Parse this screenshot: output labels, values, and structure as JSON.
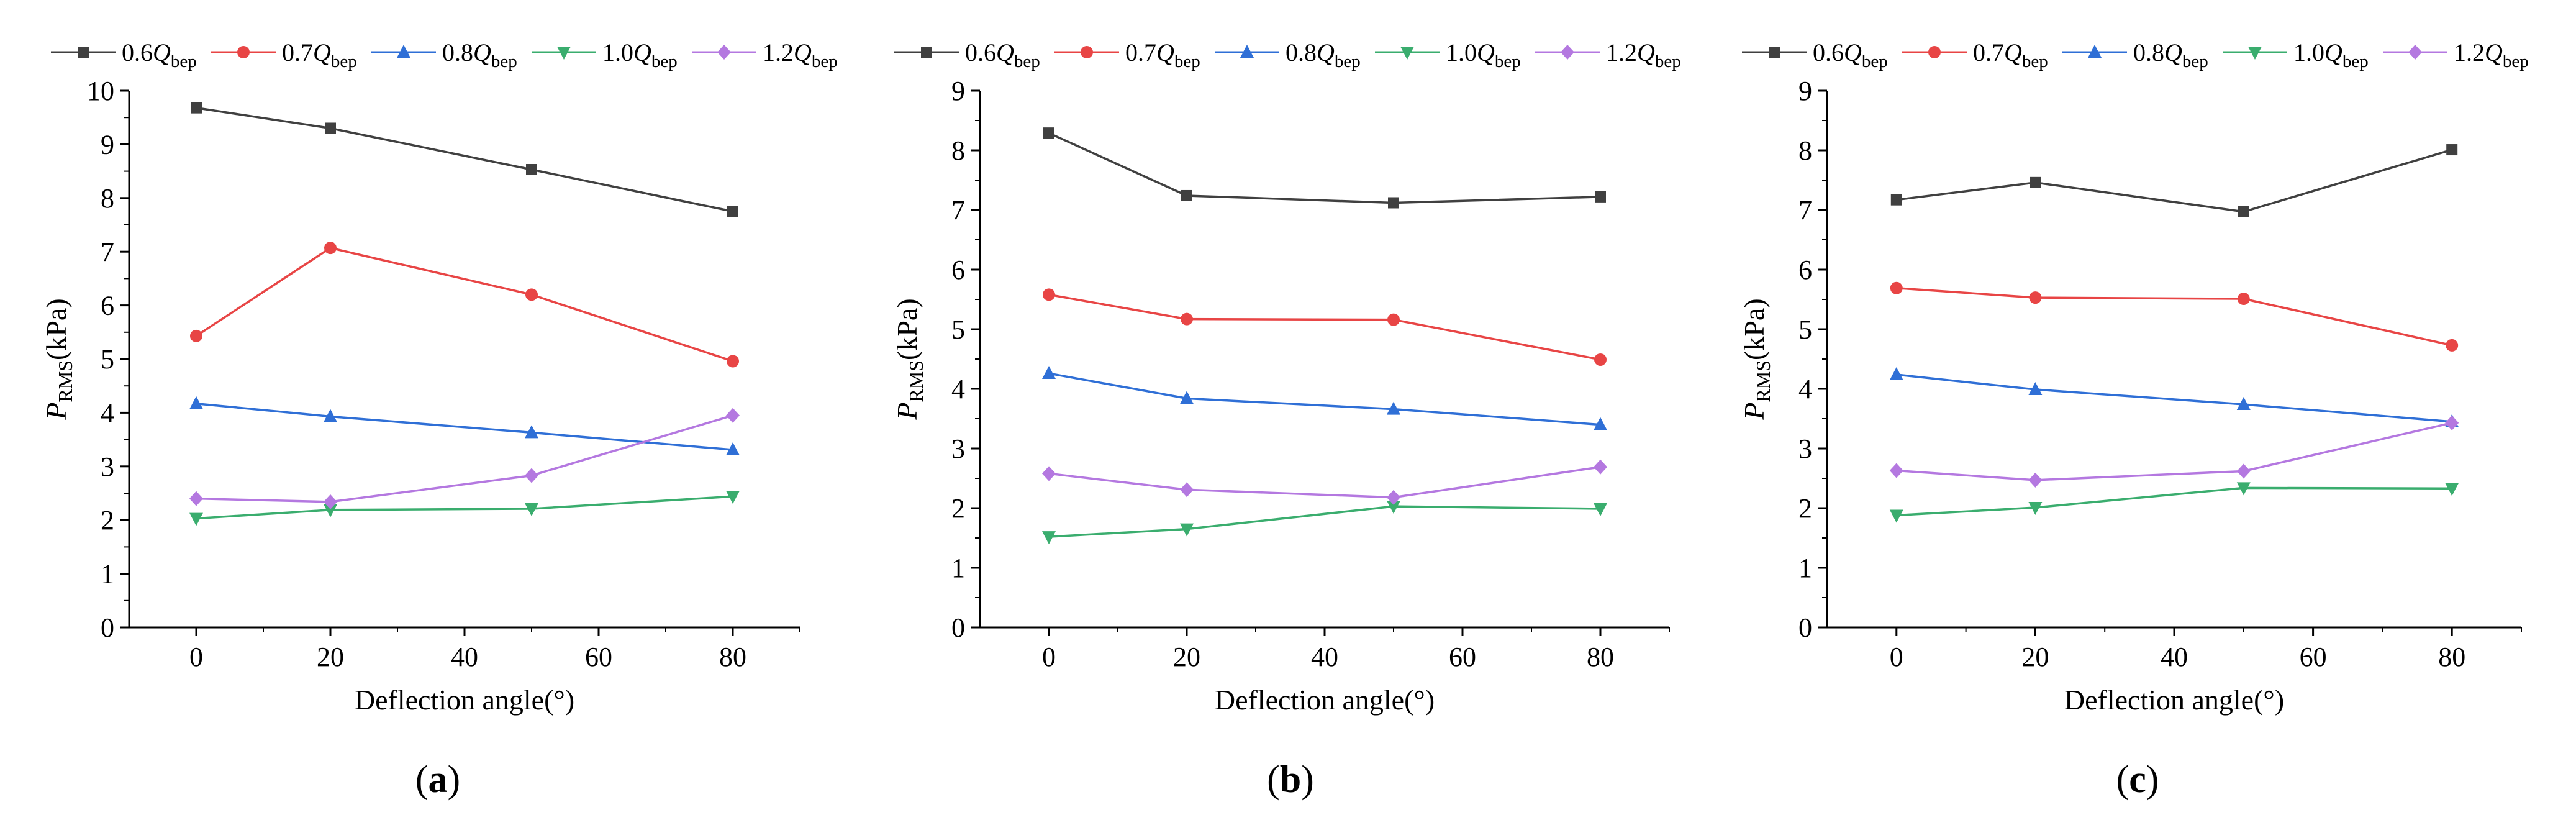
{
  "series_meta": [
    {
      "label": {
        "coef": "0.6",
        "q": "Q",
        "sub": "bep"
      },
      "color": "#404040",
      "marker": "square"
    },
    {
      "label": {
        "coef": "0.7",
        "q": "Q",
        "sub": "bep"
      },
      "color": "#e84545",
      "marker": "circle"
    },
    {
      "label": {
        "coef": "0.8",
        "q": "Q",
        "sub": "bep"
      },
      "color": "#2f6fd6",
      "marker": "triangle-up"
    },
    {
      "label": {
        "coef": "1.0",
        "q": "Q",
        "sub": "bep"
      },
      "color": "#3aad6e",
      "marker": "triangle-down"
    },
    {
      "label": {
        "coef": "1.2",
        "q": "Q",
        "sub": "bep"
      },
      "color": "#b478e0",
      "marker": "diamond"
    }
  ],
  "chart_data": [
    {
      "type": "line",
      "panel_label": "a",
      "title": "",
      "xlabel": "Deflection angle(°)",
      "ylabel": {
        "main": "P",
        "sub": "RMS",
        "unit": "(kPa)"
      },
      "x": [
        0,
        20,
        50,
        80
      ],
      "xlim": [
        -10,
        90
      ],
      "xticks": [
        0,
        20,
        40,
        60,
        80
      ],
      "ylim": [
        0,
        10
      ],
      "yticks": [
        0,
        1,
        2,
        3,
        4,
        5,
        6,
        7,
        8,
        9,
        10
      ],
      "grid": false,
      "legend": "top",
      "series": [
        {
          "name": "0.6Qbep",
          "values": [
            9.68,
            9.3,
            8.53,
            7.75
          ]
        },
        {
          "name": "0.7Qbep",
          "values": [
            5.43,
            7.07,
            6.2,
            4.96
          ]
        },
        {
          "name": "0.8Qbep",
          "values": [
            4.17,
            3.93,
            3.63,
            3.31
          ]
        },
        {
          "name": "1.0Qbep",
          "values": [
            2.03,
            2.19,
            2.21,
            2.44
          ]
        },
        {
          "name": "1.2Qbep",
          "values": [
            2.4,
            2.34,
            2.83,
            3.95
          ]
        }
      ]
    },
    {
      "type": "line",
      "panel_label": "b",
      "title": "",
      "xlabel": "Deflection angle(°)",
      "ylabel": {
        "main": "P",
        "sub": "RMS",
        "unit": "(kPa)"
      },
      "x": [
        0,
        20,
        50,
        80
      ],
      "xlim": [
        -10,
        90
      ],
      "xticks": [
        0,
        20,
        40,
        60,
        80
      ],
      "ylim": [
        0,
        9
      ],
      "yticks": [
        0,
        1,
        2,
        3,
        4,
        5,
        6,
        7,
        8,
        9
      ],
      "grid": false,
      "legend": "top",
      "series": [
        {
          "name": "0.6Qbep",
          "values": [
            8.29,
            7.24,
            7.12,
            7.22
          ]
        },
        {
          "name": "0.7Qbep",
          "values": [
            5.58,
            5.17,
            5.16,
            4.49
          ]
        },
        {
          "name": "0.8Qbep",
          "values": [
            4.26,
            3.84,
            3.66,
            3.4
          ]
        },
        {
          "name": "1.0Qbep",
          "values": [
            1.52,
            1.65,
            2.03,
            1.99
          ]
        },
        {
          "name": "1.2Qbep",
          "values": [
            2.58,
            2.31,
            2.18,
            2.69
          ]
        }
      ]
    },
    {
      "type": "line",
      "panel_label": "c",
      "title": "",
      "xlabel": "Deflection angle(°)",
      "ylabel": {
        "main": "P",
        "sub": "RMS",
        "unit": "(kPa)"
      },
      "x": [
        0,
        20,
        50,
        80
      ],
      "xlim": [
        -10,
        90
      ],
      "xticks": [
        0,
        20,
        40,
        60,
        80
      ],
      "ylim": [
        0,
        9
      ],
      "yticks": [
        0,
        1,
        2,
        3,
        4,
        5,
        6,
        7,
        8,
        9
      ],
      "grid": false,
      "legend": "top",
      "series": [
        {
          "name": "0.6Qbep",
          "values": [
            7.17,
            7.46,
            6.97,
            8.01
          ]
        },
        {
          "name": "0.7Qbep",
          "values": [
            5.69,
            5.53,
            5.51,
            4.73
          ]
        },
        {
          "name": "0.8Qbep",
          "values": [
            4.24,
            3.99,
            3.74,
            3.45
          ]
        },
        {
          "name": "1.0Qbep",
          "values": [
            1.88,
            2.01,
            2.34,
            2.33
          ]
        },
        {
          "name": "1.2Qbep",
          "values": [
            2.63,
            2.47,
            2.62,
            3.43
          ]
        }
      ]
    }
  ]
}
